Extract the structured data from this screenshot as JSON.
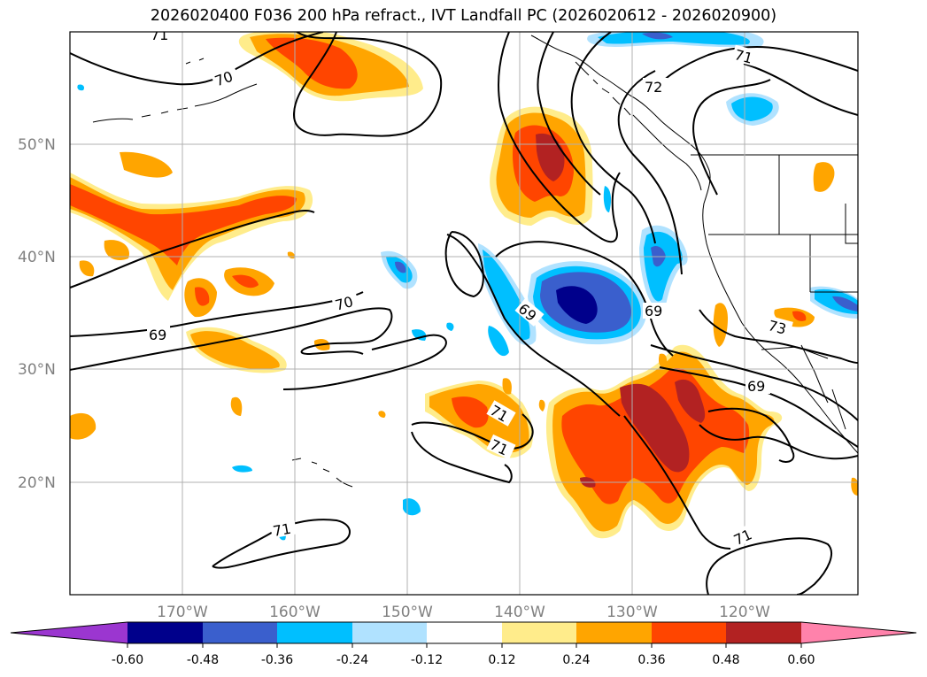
{
  "title": "2026020400 F036 200 hPa refract., IVT Landfall PC (2026020612 - 2026020900)",
  "map": {
    "lat_labels": [
      "50°N",
      "40°N",
      "30°N",
      "20°N"
    ],
    "lat_values": [
      50,
      40,
      30,
      20
    ],
    "lon_labels": [
      "170°W",
      "160°W",
      "150°W",
      "140°W",
      "130°W",
      "120°W"
    ],
    "lon_values": [
      -170,
      -160,
      -150,
      -140,
      -130,
      -120
    ],
    "extent": {
      "lon_min": -180,
      "lon_max": -110,
      "lat_min": 10,
      "lat_max": 60
    },
    "grid": true,
    "contour_labels": [
      "71",
      "70",
      "69",
      "72",
      "71",
      "69",
      "70",
      "69",
      "73",
      "69",
      "71",
      "71",
      "71",
      "71"
    ]
  },
  "colorbar": {
    "ticks": [
      "-0.60",
      "-0.48",
      "-0.36",
      "-0.24",
      "-0.12",
      "0.12",
      "0.24",
      "0.36",
      "0.48",
      "0.60"
    ],
    "colors": {
      "below": "#9b36d0",
      "c1": "#00008b",
      "c2": "#3a5fcd",
      "c3": "#00bfff",
      "c4": "#b0e2ff",
      "c5": "#ffffff",
      "c6": "#ffec8b",
      "c7": "#ffa500",
      "c8": "#ff4500",
      "c9": "#b22222",
      "above": "#ff82ab"
    }
  }
}
